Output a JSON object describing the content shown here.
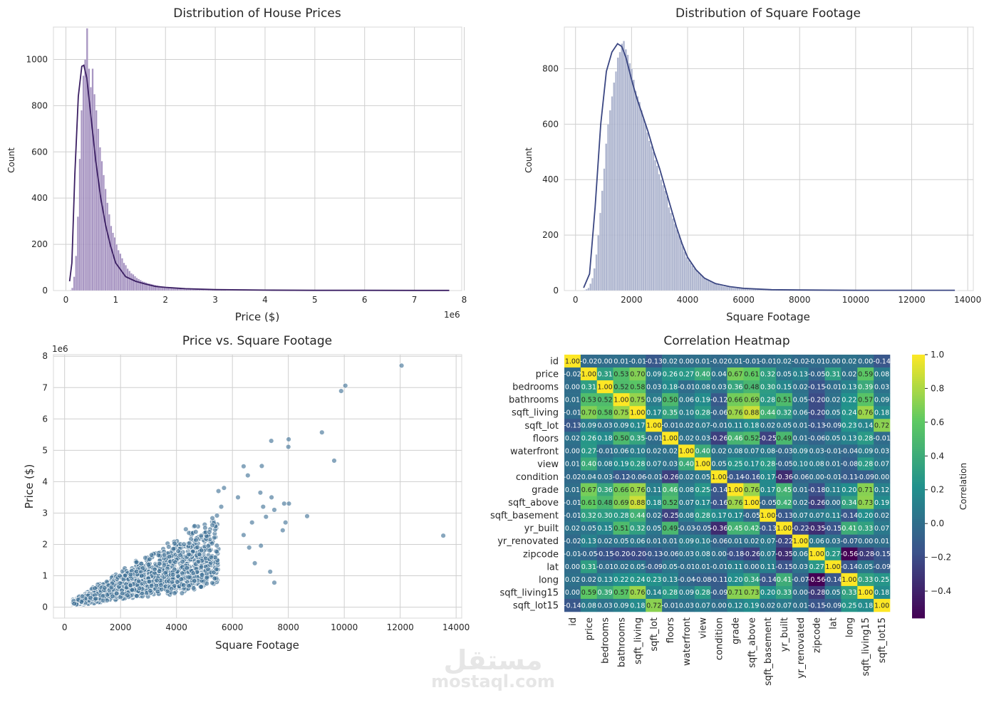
{
  "watermark": {
    "arabic": "مستقل",
    "latin": "mostaql.com"
  },
  "chart_data": [
    {
      "type": "histogram",
      "title": "Distribution of House Prices",
      "xlabel": "Price ($)",
      "ylabel": "Count",
      "x_offset_label": "1e6",
      "xlim": [
        -0.25,
        7.95
      ],
      "ylim": [
        0,
        1140
      ],
      "xticks": [
        0,
        1,
        2,
        3,
        4,
        5,
        6,
        7,
        8
      ],
      "yticks": [
        0,
        200,
        400,
        600,
        800,
        1000
      ],
      "color": "#9a85b8",
      "kde_color": "#3b1f63",
      "bins": {
        "start": 0.075,
        "width": 0.037,
        "counts": [
          2,
          12,
          60,
          150,
          320,
          570,
          780,
          930,
          1000,
          1135,
          960,
          880,
          960,
          850,
          780,
          700,
          620,
          560,
          500,
          440,
          380,
          330,
          280,
          250,
          230,
          200,
          175,
          160,
          140,
          120,
          110,
          95,
          85,
          75,
          70,
          62,
          55,
          50,
          45,
          40,
          38,
          35,
          32,
          30,
          28,
          26,
          24,
          22,
          20,
          18,
          17,
          16,
          15,
          14,
          13,
          12,
          11,
          10,
          10,
          9,
          9,
          8,
          8,
          7,
          7,
          6,
          6,
          5,
          5,
          5,
          4,
          4,
          4,
          3,
          3,
          3,
          3,
          2,
          2,
          2,
          2,
          2,
          2,
          2,
          2,
          1,
          1,
          1,
          1,
          1,
          1,
          1,
          1,
          1,
          1,
          1,
          1,
          1,
          1,
          1,
          1,
          1,
          1,
          1,
          1,
          1,
          1,
          1,
          1,
          1,
          1,
          1,
          1,
          1,
          1,
          1,
          1,
          1,
          1,
          1,
          1,
          1,
          1,
          1,
          1,
          1,
          1,
          1,
          1,
          1,
          1,
          1,
          1,
          1,
          1,
          1,
          1,
          1,
          1,
          1,
          1,
          1,
          1,
          1,
          1,
          1,
          1,
          1,
          1,
          1,
          1,
          1,
          1,
          1,
          1,
          1,
          1,
          1,
          1,
          1,
          1,
          1,
          1,
          1,
          1,
          1,
          1,
          1,
          1,
          1,
          1,
          1,
          1,
          1,
          1,
          1,
          1,
          1,
          1,
          1,
          1,
          1,
          1,
          1,
          1,
          1,
          1,
          1,
          1,
          1,
          1,
          1,
          1,
          1,
          1,
          1,
          1,
          1,
          1
        ]
      },
      "kde": [
        [
          0.075,
          40
        ],
        [
          0.12,
          120
        ],
        [
          0.18,
          500
        ],
        [
          0.25,
          840
        ],
        [
          0.32,
          970
        ],
        [
          0.36,
          975
        ],
        [
          0.42,
          920
        ],
        [
          0.5,
          760
        ],
        [
          0.6,
          560
        ],
        [
          0.7,
          400
        ],
        [
          0.8,
          280
        ],
        [
          0.9,
          190
        ],
        [
          1.0,
          120
        ],
        [
          1.2,
          60
        ],
        [
          1.4,
          40
        ],
        [
          1.6,
          28
        ],
        [
          1.8,
          18
        ],
        [
          2.0,
          14
        ],
        [
          2.4,
          8
        ],
        [
          3.0,
          4
        ],
        [
          4.0,
          2
        ],
        [
          5.0,
          1
        ],
        [
          6.0,
          1
        ],
        [
          7.0,
          0.5
        ],
        [
          7.7,
          0.5
        ]
      ]
    },
    {
      "type": "histogram",
      "title": "Distribution of Square Footage",
      "xlabel": "Square Footage",
      "ylabel": "Count",
      "xlim": [
        -400,
        14200
      ],
      "ylim": [
        0,
        950
      ],
      "xticks": [
        0,
        2000,
        4000,
        6000,
        8000,
        10000,
        12000,
        14000
      ],
      "yticks": [
        0,
        200,
        400,
        600,
        800
      ],
      "color": "#a2aac8",
      "kde_color": "#3a4682",
      "bins": {
        "start": 290,
        "width": 70,
        "counts": [
          2,
          5,
          10,
          25,
          45,
          80,
          130,
          200,
          280,
          360,
          440,
          530,
          600,
          650,
          700,
          750,
          790,
          840,
          860,
          890,
          900,
          870,
          850,
          820,
          800,
          760,
          720,
          700,
          680,
          650,
          620,
          600,
          570,
          540,
          520,
          500,
          470,
          450,
          420,
          400,
          380,
          360,
          340,
          300,
          280,
          260,
          240,
          220,
          200,
          180,
          160,
          140,
          120,
          110,
          100,
          90,
          80,
          72,
          65,
          58,
          52,
          46,
          42,
          38,
          34,
          30,
          27,
          24,
          21,
          19,
          17,
          15,
          14,
          13,
          12,
          11,
          10,
          9,
          9,
          8,
          8,
          7,
          7,
          6,
          6,
          5,
          5,
          5,
          4,
          4,
          4,
          3,
          3,
          3,
          3,
          2,
          2,
          2,
          2,
          2,
          2,
          2,
          2,
          1,
          1,
          1,
          1,
          1,
          1,
          1,
          1,
          1,
          1,
          1,
          1,
          1,
          1,
          1,
          1,
          1,
          1,
          1,
          1,
          1,
          1,
          1,
          1,
          1,
          1,
          1,
          1,
          1,
          1,
          1,
          1,
          1,
          1,
          1,
          1,
          1,
          1,
          1,
          1,
          1,
          1,
          1,
          1,
          1,
          1,
          1,
          1,
          1,
          1,
          1,
          1,
          1,
          1,
          1,
          1,
          1,
          1,
          1,
          1,
          1,
          1,
          1,
          1,
          1,
          1,
          1,
          1,
          1,
          1,
          1,
          1,
          1,
          1,
          1,
          1,
          1,
          1,
          1,
          1,
          1,
          1,
          1,
          1,
          1,
          1,
          1,
          1
        ]
      },
      "kde": [
        [
          290,
          10
        ],
        [
          500,
          60
        ],
        [
          700,
          300
        ],
        [
          900,
          600
        ],
        [
          1100,
          790
        ],
        [
          1300,
          860
        ],
        [
          1500,
          890
        ],
        [
          1650,
          880
        ],
        [
          1800,
          840
        ],
        [
          2000,
          760
        ],
        [
          2200,
          690
        ],
        [
          2400,
          630
        ],
        [
          2600,
          570
        ],
        [
          2800,
          500
        ],
        [
          3000,
          440
        ],
        [
          3200,
          370
        ],
        [
          3400,
          300
        ],
        [
          3600,
          230
        ],
        [
          3800,
          170
        ],
        [
          4000,
          120
        ],
        [
          4300,
          75
        ],
        [
          4600,
          45
        ],
        [
          5000,
          25
        ],
        [
          5500,
          14
        ],
        [
          6000,
          8
        ],
        [
          7000,
          3
        ],
        [
          8000,
          2
        ],
        [
          10000,
          1
        ],
        [
          12000,
          1
        ],
        [
          13540,
          1
        ]
      ]
    },
    {
      "type": "scatter",
      "title": "Price vs. Square Footage",
      "xlabel": "Square Footage",
      "ylabel": "Price ($)",
      "y_offset_label": "1e6",
      "xlim": [
        -400,
        14200
      ],
      "ylim": [
        -0.35,
        8.05
      ],
      "xticks": [
        0,
        2000,
        4000,
        6000,
        8000,
        10000,
        12000,
        14000
      ],
      "yticks": [
        0,
        1,
        2,
        3,
        4,
        5,
        6,
        7,
        8
      ],
      "color": "#3d6f94",
      "outliers": [
        [
          12050,
          7.7
        ],
        [
          10040,
          7.06
        ],
        [
          9890,
          6.89
        ],
        [
          9200,
          5.57
        ],
        [
          8010,
          5.35
        ],
        [
          8000,
          5.11
        ],
        [
          7390,
          5.3
        ],
        [
          9640,
          4.67
        ],
        [
          13540,
          2.28
        ],
        [
          7050,
          4.5
        ],
        [
          8670,
          2.9
        ],
        [
          6400,
          4.49
        ],
        [
          6550,
          4.2
        ],
        [
          7000,
          3.65
        ],
        [
          6200,
          3.5
        ],
        [
          7850,
          3.3
        ],
        [
          8020,
          3.3
        ],
        [
          7500,
          3.1
        ],
        [
          7400,
          3.5
        ],
        [
          7100,
          3.2
        ],
        [
          7200,
          2.88
        ],
        [
          7900,
          2.7
        ],
        [
          7800,
          2.45
        ],
        [
          7500,
          0.78
        ],
        [
          7350,
          1.13
        ],
        [
          7020,
          1.96
        ],
        [
          6800,
          1.4
        ],
        [
          6600,
          1.9
        ],
        [
          6400,
          2.3
        ],
        [
          6700,
          2.7
        ],
        [
          5500,
          3.7
        ],
        [
          5700,
          3.8
        ],
        [
          5600,
          3.2
        ]
      ]
    },
    {
      "type": "heatmap",
      "title": "Correlation Heatmap",
      "colorbar_label": "Correlation",
      "colorbar_ticks": [
        "1.0",
        "0.8",
        "0.6",
        "0.4",
        "0.2",
        "0.0",
        "−0.2",
        "−0.4"
      ],
      "colorbar_tick_values": [
        1.0,
        0.8,
        0.6,
        0.4,
        0.2,
        0.0,
        -0.2,
        -0.4
      ],
      "vmin": -0.56,
      "vmax": 1.0,
      "labels": [
        "id",
        "price",
        "bedrooms",
        "bathrooms",
        "sqft_living",
        "sqft_lot",
        "floors",
        "waterfront",
        "view",
        "condition",
        "grade",
        "sqft_above",
        "sqft_basement",
        "yr_built",
        "yr_renovated",
        "zipcode",
        "lat",
        "long",
        "sqft_living15",
        "sqft_lot15"
      ],
      "matrix": [
        [
          1.0,
          -0.02,
          0.0,
          0.01,
          -0.01,
          -0.13,
          0.02,
          -0.0,
          0.01,
          -0.02,
          0.01,
          -0.01,
          -0.01,
          0.02,
          -0.02,
          -0.01,
          -0.0,
          0.02,
          -0.0,
          -0.14
        ],
        [
          -0.02,
          1.0,
          0.31,
          0.53,
          0.7,
          0.09,
          0.26,
          0.27,
          0.4,
          0.04,
          0.67,
          0.61,
          0.32,
          0.05,
          0.13,
          -0.05,
          0.31,
          0.02,
          0.59,
          0.08
        ],
        [
          0.0,
          0.31,
          1.0,
          0.52,
          0.58,
          0.03,
          0.18,
          -0.01,
          0.08,
          0.03,
          0.36,
          0.48,
          0.3,
          0.15,
          0.02,
          -0.15,
          -0.01,
          0.13,
          0.39,
          0.03
        ],
        [
          0.01,
          0.53,
          0.52,
          1.0,
          0.75,
          0.09,
          0.5,
          0.06,
          0.19,
          -0.12,
          0.66,
          0.69,
          0.28,
          0.51,
          0.05,
          -0.2,
          0.02,
          0.22,
          0.57,
          0.09
        ],
        [
          -0.01,
          0.7,
          0.58,
          0.75,
          1.0,
          0.17,
          0.35,
          0.1,
          0.28,
          -0.06,
          0.76,
          0.88,
          0.44,
          0.32,
          0.06,
          -0.2,
          0.05,
          0.24,
          0.76,
          0.18
        ],
        [
          -0.13,
          0.09,
          0.03,
          0.09,
          0.17,
          1.0,
          -0.01,
          0.02,
          0.07,
          -0.01,
          0.11,
          0.18,
          0.02,
          0.05,
          0.01,
          -0.13,
          -0.09,
          0.23,
          0.14,
          0.72
        ],
        [
          0.02,
          0.26,
          0.18,
          0.5,
          0.35,
          -0.01,
          1.0,
          0.02,
          0.03,
          -0.26,
          0.46,
          0.52,
          -0.25,
          0.49,
          0.01,
          -0.06,
          0.05,
          0.13,
          0.28,
          -0.01
        ],
        [
          -0.0,
          0.27,
          -0.01,
          0.06,
          0.1,
          0.02,
          0.02,
          1.0,
          0.4,
          0.02,
          0.08,
          0.07,
          0.08,
          -0.03,
          0.09,
          0.03,
          -0.01,
          -0.04,
          0.09,
          0.03
        ],
        [
          0.01,
          0.4,
          0.08,
          0.19,
          0.28,
          0.07,
          0.03,
          0.4,
          1.0,
          0.05,
          0.25,
          0.17,
          0.28,
          -0.05,
          0.1,
          0.08,
          0.01,
          -0.08,
          0.28,
          0.07
        ],
        [
          -0.02,
          0.04,
          0.03,
          -0.12,
          -0.06,
          -0.01,
          -0.26,
          0.02,
          0.05,
          1.0,
          -0.14,
          -0.16,
          0.17,
          -0.36,
          -0.06,
          0.0,
          -0.01,
          -0.11,
          -0.09,
          -0.0
        ],
        [
          0.01,
          0.67,
          0.36,
          0.66,
          0.76,
          0.11,
          0.46,
          0.08,
          0.25,
          -0.14,
          1.0,
          0.76,
          0.17,
          0.45,
          0.01,
          -0.18,
          0.11,
          0.2,
          0.71,
          0.12
        ],
        [
          -0.01,
          0.61,
          0.48,
          0.69,
          0.88,
          0.18,
          0.52,
          0.07,
          0.17,
          -0.16,
          0.76,
          1.0,
          -0.05,
          0.42,
          0.02,
          -0.26,
          -0.0,
          0.34,
          0.73,
          0.19
        ],
        [
          -0.01,
          0.32,
          0.3,
          0.28,
          0.44,
          0.02,
          -0.25,
          0.08,
          0.28,
          0.17,
          0.17,
          -0.05,
          1.0,
          -0.13,
          0.07,
          0.07,
          0.11,
          -0.14,
          0.2,
          0.02
        ],
        [
          0.02,
          0.05,
          0.15,
          0.51,
          0.32,
          0.05,
          0.49,
          -0.03,
          -0.05,
          -0.36,
          0.45,
          0.42,
          -0.13,
          1.0,
          -0.22,
          -0.35,
          -0.15,
          0.41,
          0.33,
          0.07
        ],
        [
          -0.02,
          0.13,
          0.02,
          0.05,
          0.06,
          0.01,
          0.01,
          0.09,
          0.1,
          -0.06,
          0.01,
          0.02,
          0.07,
          -0.22,
          1.0,
          0.06,
          0.03,
          -0.07,
          -0.0,
          0.01
        ],
        [
          -0.01,
          -0.05,
          -0.15,
          -0.2,
          -0.2,
          -0.13,
          -0.06,
          0.03,
          0.08,
          0.0,
          -0.18,
          -0.26,
          0.07,
          -0.35,
          0.06,
          1.0,
          0.27,
          -0.56,
          -0.28,
          -0.15
        ],
        [
          -0.0,
          0.31,
          -0.01,
          0.02,
          0.05,
          -0.09,
          0.05,
          -0.01,
          0.01,
          -0.01,
          0.11,
          -0.0,
          0.11,
          -0.15,
          0.03,
          0.27,
          1.0,
          -0.14,
          0.05,
          -0.09
        ],
        [
          0.02,
          0.02,
          0.13,
          0.22,
          0.24,
          0.23,
          0.13,
          -0.04,
          -0.08,
          -0.11,
          0.2,
          0.34,
          -0.14,
          0.41,
          -0.07,
          -0.56,
          -0.14,
          1.0,
          0.33,
          0.25
        ],
        [
          -0.0,
          0.59,
          0.39,
          0.57,
          0.76,
          0.14,
          0.28,
          0.09,
          0.28,
          -0.09,
          0.71,
          0.73,
          0.2,
          0.33,
          -0.0,
          -0.28,
          0.05,
          0.33,
          1.0,
          0.18
        ],
        [
          -0.14,
          0.08,
          0.03,
          0.09,
          0.18,
          0.72,
          -0.01,
          0.03,
          0.07,
          -0.0,
          0.12,
          0.19,
          0.02,
          0.07,
          0.01,
          -0.15,
          -0.09,
          0.25,
          0.18,
          1.0
        ]
      ]
    }
  ]
}
